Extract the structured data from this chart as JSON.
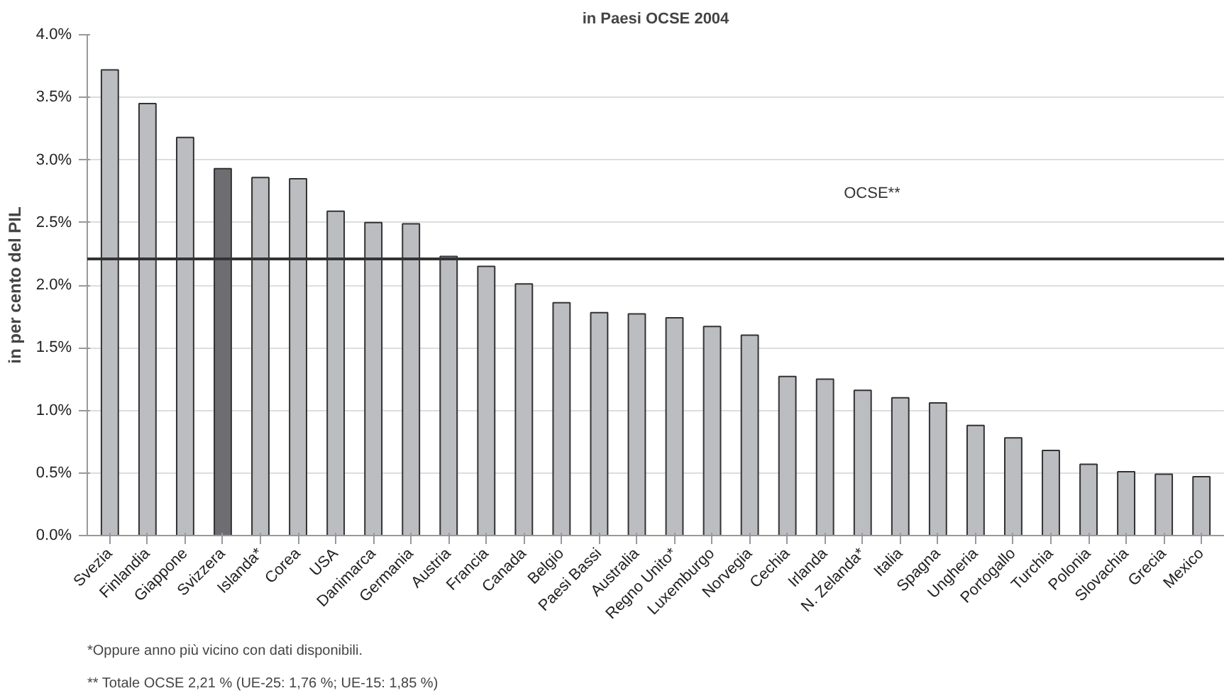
{
  "chart_data": {
    "type": "bar",
    "title": "in Paesi OCSE 2004",
    "ylabel": "in per cento del PIL",
    "categories": [
      "Svezia",
      "Finlandia",
      "Giappone",
      "Svizzera",
      "Islanda*",
      "Corea",
      "USA",
      "Danimarca",
      "Germania",
      "Austria",
      "Francia",
      "Canada",
      "Belgio",
      "Paesi Bassi",
      "Australia",
      "Regno Unito*",
      "Luxemburgo",
      "Norvegia",
      "Cechia",
      "Irlanda",
      "N. Zelanda*",
      "Italia",
      "Spagna",
      "Ungheria",
      "Portogallo",
      "Turchia",
      "Polonia",
      "Slovachia",
      "Grecia",
      "Mexico"
    ],
    "values": [
      3.72,
      3.45,
      3.18,
      2.93,
      2.86,
      2.85,
      2.59,
      2.5,
      2.49,
      2.23,
      2.15,
      2.01,
      1.86,
      1.78,
      1.77,
      1.74,
      1.67,
      1.6,
      1.27,
      1.25,
      1.16,
      1.1,
      1.06,
      0.88,
      0.78,
      0.68,
      0.57,
      0.51,
      0.49,
      0.47
    ],
    "colors": [
      "#bcbdc1",
      "#bcbdc1",
      "#bcbdc1",
      "#6e6e72",
      "#bcbdc1",
      "#bcbdc1",
      "#bcbdc1",
      "#bcbdc1",
      "#bcbdc1",
      "#bcbdc1",
      "#bcbdc1",
      "#bcbdc1",
      "#bcbdc1",
      "#bcbdc1",
      "#bcbdc1",
      "#bcbdc1",
      "#bcbdc1",
      "#bcbdc1",
      "#bcbdc1",
      "#bcbdc1",
      "#bcbdc1",
      "#bcbdc1",
      "#bcbdc1",
      "#bcbdc1",
      "#bcbdc1",
      "#bcbdc1",
      "#bcbdc1",
      "#bcbdc1",
      "#bcbdc1",
      "#bcbdc1"
    ],
    "ylim": [
      0,
      4.0
    ],
    "yticks": [
      {
        "value": 0,
        "label": "0.0%"
      },
      {
        "value": 0.5,
        "label": "0.5%"
      },
      {
        "value": 1.0,
        "label": "1.0%"
      },
      {
        "value": 1.5,
        "label": "1.5%"
      },
      {
        "value": 2.0,
        "label": "2.0%"
      },
      {
        "value": 2.5,
        "label": "2.5%"
      },
      {
        "value": 3.0,
        "label": "3.0%"
      },
      {
        "value": 3.5,
        "label": "3.5%"
      },
      {
        "value": 4.0,
        "label": "4.0%"
      }
    ],
    "grid": "y",
    "ref_lines": [
      {
        "axis": "y",
        "value": 2.21,
        "label": "OCSE**",
        "color": "#333333"
      }
    ],
    "annotations": [
      "*Oppure anno più vicino con dati disponibili.",
      "** Totale OCSE 2,21 % (UE-25: 1,76 %; UE-15: 1,85 %)"
    ]
  }
}
